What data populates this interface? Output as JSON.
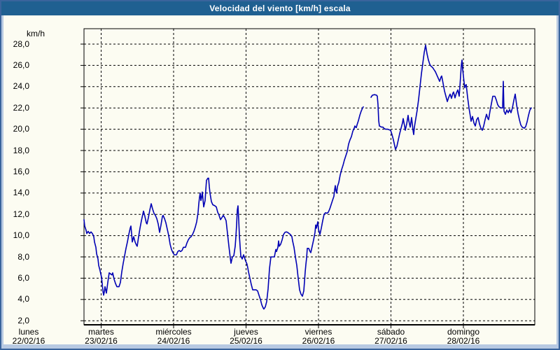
{
  "window": {
    "title": "Velocidad del viento [km/h] escala"
  },
  "colors": {
    "titlebar_bg": "#1f6091",
    "title_text": "#ffffff",
    "frame": "#b7c9e2",
    "frame_border": "#3a649c",
    "content_bg": "#fcfcf2",
    "grid": "#000000",
    "line": "#0000b4",
    "label_text": "#000000"
  },
  "chart_data": {
    "type": "line",
    "title": "Velocidad del viento [km/h] escala",
    "unit_label": "km/h",
    "grid": "dashed",
    "legend": "none",
    "y_axis": {
      "min": 2.0,
      "max": 28.0,
      "step": 2.0,
      "ticks": [
        2,
        4,
        6,
        8,
        10,
        12,
        14,
        16,
        18,
        20,
        22,
        24,
        26,
        28
      ],
      "tick_labels": [
        "2,0",
        "4,0",
        "6,0",
        "8,0",
        "10,0",
        "12,0",
        "14,0",
        "16,0",
        "18,0",
        "20,0",
        "22,0",
        "24,0",
        "26,0",
        "28,0"
      ]
    },
    "x_axis": {
      "days": [
        {
          "name": "lunes",
          "date": "22/02/16"
        },
        {
          "name": "martes",
          "date": "23/02/16"
        },
        {
          "name": "miércoles",
          "date": "24/02/16"
        },
        {
          "name": "jueves",
          "date": "25/02/16"
        },
        {
          "name": "viernes",
          "date": "26/02/16"
        },
        {
          "name": "sábado",
          "date": "27/02/16"
        },
        {
          "name": "domingo",
          "date": "28/02/16"
        }
      ]
    },
    "series_name": "Velocidad del viento",
    "series_color": "#0000b4",
    "segments": [
      [
        [
          118,
          11.5
        ],
        [
          119,
          10.9
        ],
        [
          121,
          10.5
        ],
        [
          122,
          10.2
        ],
        [
          124,
          10.4
        ],
        [
          126,
          10.2
        ],
        [
          128,
          10.35
        ],
        [
          130,
          10.2
        ],
        [
          132,
          9.9
        ],
        [
          133,
          9.4
        ],
        [
          135,
          8.9
        ],
        [
          136,
          8.3
        ],
        [
          138,
          7.8
        ],
        [
          139,
          7.2
        ],
        [
          141,
          6.7
        ],
        [
          143,
          6.1
        ],
        [
          144,
          5.5
        ],
        [
          145,
          4.8
        ],
        [
          146,
          4.4
        ],
        [
          147,
          4.7
        ],
        [
          148,
          5.2
        ],
        [
          149,
          4.9
        ],
        [
          150,
          4.6
        ],
        [
          152,
          5.6
        ],
        [
          154,
          6.5
        ],
        [
          156,
          6.4
        ],
        [
          158,
          6.3
        ],
        [
          159,
          6.5
        ],
        [
          161,
          5.9
        ],
        [
          163,
          5.5
        ],
        [
          165,
          5.2
        ],
        [
          168,
          5.2
        ],
        [
          170,
          5.6
        ],
        [
          172,
          6.6
        ],
        [
          174,
          7.4
        ],
        [
          176,
          8.1
        ],
        [
          178,
          8.8
        ],
        [
          180,
          9.4
        ],
        [
          182,
          10.1
        ],
        [
          184,
          10.7
        ],
        [
          185,
          10.9
        ],
        [
          186,
          10.2
        ],
        [
          187,
          9.4
        ],
        [
          189,
          9.9
        ],
        [
          191,
          9.4
        ],
        [
          193,
          9.1
        ],
        [
          194,
          9.0
        ],
        [
          196,
          9.9
        ],
        [
          198,
          10.7
        ],
        [
          200,
          11.4
        ],
        [
          202,
          12.0
        ],
        [
          203,
          12.3
        ],
        [
          205,
          11.8
        ],
        [
          207,
          11.2
        ],
        [
          208,
          11.1
        ],
        [
          210,
          11.7
        ],
        [
          212,
          12.4
        ],
        [
          214,
          13.0
        ],
        [
          216,
          12.5
        ],
        [
          218,
          12.1
        ],
        [
          220,
          11.9
        ],
        [
          222,
          11.6
        ],
        [
          224,
          11.1
        ],
        [
          226,
          10.3
        ],
        [
          228,
          11.0
        ],
        [
          230,
          11.8
        ],
        [
          231,
          11.9
        ],
        [
          233,
          11.6
        ],
        [
          235,
          11.2
        ],
        [
          237,
          10.6
        ],
        [
          239,
          10.0
        ],
        [
          241,
          9.2
        ],
        [
          243,
          8.7
        ],
        [
          245,
          8.4
        ],
        [
          247,
          8.2
        ],
        [
          250,
          8.2
        ],
        [
          252,
          8.5
        ],
        [
          254,
          8.6
        ],
        [
          256,
          8.5
        ],
        [
          258,
          8.6
        ],
        [
          260,
          8.9
        ],
        [
          263,
          8.9
        ],
        [
          265,
          9.3
        ],
        [
          267,
          9.6
        ],
        [
          269,
          9.8
        ],
        [
          271,
          9.9
        ],
        [
          273,
          10.1
        ],
        [
          275,
          10.4
        ],
        [
          277,
          10.8
        ],
        [
          279,
          11.3
        ],
        [
          281,
          12.2
        ],
        [
          282,
          13.0
        ],
        [
          283,
          13.6
        ],
        [
          284,
          14.0
        ],
        [
          285,
          13.3
        ],
        [
          286,
          13.6
        ],
        [
          287,
          14.1
        ],
        [
          288,
          13.4
        ],
        [
          289,
          12.7
        ],
        [
          291,
          13.3
        ],
        [
          292,
          14.3
        ],
        [
          293,
          15.2
        ],
        [
          295,
          15.4
        ],
        [
          296,
          15.4
        ],
        [
          297,
          14.6
        ],
        [
          298,
          14.0
        ],
        [
          300,
          13.2
        ],
        [
          302,
          12.9
        ],
        [
          305,
          12.8
        ],
        [
          307,
          12.7
        ],
        [
          309,
          12.2
        ],
        [
          311,
          11.9
        ],
        [
          313,
          11.5
        ],
        [
          315,
          11.7
        ],
        [
          317,
          11.9
        ],
        [
          319,
          11.7
        ],
        [
          321,
          11.4
        ],
        [
          323,
          10.2
        ],
        [
          325,
          9.0
        ],
        [
          327,
          7.9
        ],
        [
          328,
          7.4
        ],
        [
          330,
          8.0
        ],
        [
          332,
          8.1
        ],
        [
          334,
          9.0
        ],
        [
          335,
          9.9
        ],
        [
          336,
          11.0
        ],
        [
          337,
          12.4
        ],
        [
          338,
          12.8
        ],
        [
          339,
          11.5
        ],
        [
          340,
          10.0
        ],
        [
          341,
          9.0
        ],
        [
          342,
          8.1
        ],
        [
          344,
          7.8
        ],
        [
          346,
          8.2
        ],
        [
          347,
          8.0
        ],
        [
          349,
          7.6
        ],
        [
          351,
          7.3
        ],
        [
          353,
          6.6
        ],
        [
          355,
          6.0
        ],
        [
          357,
          5.4
        ],
        [
          359,
          4.9
        ],
        [
          362,
          4.9
        ],
        [
          364,
          4.9
        ],
        [
          366,
          4.8
        ],
        [
          368,
          4.4
        ],
        [
          370,
          4.0
        ],
        [
          372,
          3.5
        ],
        [
          374,
          3.2
        ],
        [
          375,
          3.1
        ],
        [
          377,
          3.3
        ],
        [
          379,
          3.8
        ],
        [
          381,
          5.0
        ],
        [
          383,
          6.9
        ],
        [
          385,
          8.0
        ],
        [
          388,
          8.0
        ],
        [
          390,
          8.0
        ],
        [
          392,
          8.7
        ],
        [
          393,
          8.5
        ],
        [
          395,
          8.9
        ],
        [
          396,
          9.5
        ],
        [
          397,
          9.0
        ],
        [
          399,
          9.2
        ],
        [
          401,
          9.6
        ],
        [
          403,
          10.1
        ],
        [
          405,
          10.3
        ],
        [
          407,
          10.35
        ],
        [
          409,
          10.3
        ],
        [
          411,
          10.2
        ],
        [
          413,
          10.1
        ],
        [
          415,
          9.9
        ],
        [
          416,
          9.5
        ],
        [
          418,
          8.9
        ],
        [
          420,
          8.0
        ],
        [
          422,
          7.2
        ],
        [
          424,
          6.0
        ],
        [
          426,
          4.9
        ],
        [
          428,
          4.5
        ],
        [
          430,
          4.3
        ],
        [
          432,
          4.8
        ],
        [
          433,
          5.7
        ],
        [
          434,
          6.6
        ],
        [
          435,
          7.3
        ],
        [
          436,
          7.9
        ],
        [
          437,
          8.8
        ],
        [
          439,
          8.8
        ],
        [
          441,
          8.5
        ],
        [
          442,
          8.4
        ],
        [
          444,
          9.0
        ],
        [
          446,
          9.6
        ],
        [
          448,
          10.3
        ],
        [
          449,
          11.0
        ],
        [
          450,
          10.7
        ],
        [
          452,
          11.3
        ],
        [
          453,
          10.6
        ],
        [
          455,
          10.1
        ],
        [
          457,
          10.7
        ],
        [
          459,
          11.4
        ],
        [
          461,
          12.0
        ],
        [
          463,
          12.15
        ],
        [
          465,
          12.1
        ],
        [
          467,
          12.2
        ],
        [
          469,
          12.5
        ],
        [
          471,
          12.9
        ],
        [
          473,
          13.3
        ],
        [
          475,
          13.7
        ],
        [
          476,
          14.3
        ],
        [
          477,
          14.7
        ],
        [
          478,
          14.2
        ],
        [
          479,
          14.0
        ],
        [
          480,
          14.6
        ],
        [
          482,
          15.0
        ],
        [
          484,
          15.7
        ],
        [
          486,
          16.2
        ],
        [
          488,
          16.6
        ],
        [
          490,
          17.1
        ],
        [
          492,
          17.5
        ],
        [
          494,
          17.9
        ],
        [
          496,
          18.6
        ],
        [
          498,
          19.0
        ],
        [
          500,
          19.3
        ],
        [
          502,
          19.8
        ],
        [
          504,
          20.1
        ],
        [
          505,
          20.3
        ],
        [
          506,
          20.2
        ],
        [
          507,
          20.15
        ],
        [
          508,
          20.4
        ],
        [
          510,
          20.8
        ],
        [
          512,
          21.3
        ],
        [
          514,
          21.7
        ],
        [
          516,
          22.0
        ],
        [
          517,
          22.1
        ]
      ],
      [
        [
          528,
          23.0
        ],
        [
          530,
          23.2
        ],
        [
          533,
          23.25
        ],
        [
          536,
          23.2
        ],
        [
          537,
          23.1
        ],
        [
          538,
          22.3
        ],
        [
          539,
          20.8
        ],
        [
          540,
          20.3
        ],
        [
          543,
          20.2
        ],
        [
          545,
          20.2
        ],
        [
          547,
          20.05
        ],
        [
          549,
          20.0
        ],
        [
          552,
          20.0
        ],
        [
          554,
          19.95
        ],
        [
          556,
          19.9
        ],
        [
          558,
          19.5
        ],
        [
          560,
          19.0
        ],
        [
          562,
          18.4
        ],
        [
          563,
          18.1
        ],
        [
          565,
          18.4
        ],
        [
          567,
          19.0
        ],
        [
          569,
          19.6
        ],
        [
          571,
          20.1
        ],
        [
          573,
          20.6
        ],
        [
          574,
          21.0
        ],
        [
          576,
          20.3
        ],
        [
          577,
          19.9
        ],
        [
          579,
          20.5
        ],
        [
          581,
          21.3
        ],
        [
          582,
          20.8
        ],
        [
          584,
          20.2
        ],
        [
          586,
          21.1
        ],
        [
          588,
          19.9
        ],
        [
          589,
          19.5
        ],
        [
          590,
          20.2
        ],
        [
          592,
          21.0
        ],
        [
          594,
          21.8
        ],
        [
          596,
          22.8
        ],
        [
          598,
          24.0
        ],
        [
          600,
          25.2
        ],
        [
          602,
          26.2
        ],
        [
          604,
          27.2
        ],
        [
          606,
          27.9
        ],
        [
          608,
          27.1
        ],
        [
          610,
          26.5
        ],
        [
          612,
          26.1
        ],
        [
          614,
          25.9
        ],
        [
          616,
          25.8
        ],
        [
          618,
          25.6
        ],
        [
          620,
          25.4
        ],
        [
          622,
          25.1
        ],
        [
          624,
          24.8
        ],
        [
          626,
          24.5
        ],
        [
          628,
          24.9
        ],
        [
          629,
          25.0
        ],
        [
          631,
          24.3
        ],
        [
          633,
          23.6
        ],
        [
          635,
          23.1
        ],
        [
          637,
          22.6
        ],
        [
          639,
          23.0
        ],
        [
          641,
          23.3
        ],
        [
          643,
          22.9
        ],
        [
          645,
          23.4
        ],
        [
          646,
          23.5
        ],
        [
          648,
          22.95
        ],
        [
          650,
          23.4
        ],
        [
          652,
          23.7
        ],
        [
          654,
          23.1
        ],
        [
          655,
          24.0
        ],
        [
          656,
          25.0
        ],
        [
          657,
          26.0
        ],
        [
          658,
          26.5
        ],
        [
          659,
          25.6
        ],
        [
          660,
          25.0
        ],
        [
          661,
          24.4
        ],
        [
          662,
          23.9
        ],
        [
          663,
          24.1
        ],
        [
          664,
          24.2
        ],
        [
          666,
          23.0
        ],
        [
          668,
          22.0
        ],
        [
          670,
          21.2
        ],
        [
          671,
          20.75
        ],
        [
          673,
          21.2
        ],
        [
          675,
          20.6
        ],
        [
          677,
          20.3
        ],
        [
          679,
          20.9
        ],
        [
          681,
          21.1
        ],
        [
          683,
          20.5
        ],
        [
          685,
          20.1
        ],
        [
          687,
          19.9
        ],
        [
          689,
          20.3
        ],
        [
          691,
          20.9
        ],
        [
          693,
          21.4
        ],
        [
          695,
          21.0
        ],
        [
          696,
          20.9
        ],
        [
          698,
          21.7
        ],
        [
          700,
          22.4
        ],
        [
          702,
          23.1
        ],
        [
          705,
          23.1
        ],
        [
          707,
          22.75
        ],
        [
          709,
          22.3
        ],
        [
          711,
          22.1
        ],
        [
          714,
          22.0
        ],
        [
          716,
          22.0
        ],
        [
          717,
          24.5
        ],
        [
          718,
          21.7
        ],
        [
          720,
          21.4
        ],
        [
          722,
          21.8
        ],
        [
          724,
          21.55
        ],
        [
          726,
          21.85
        ],
        [
          728,
          21.55
        ],
        [
          730,
          22.0
        ],
        [
          732,
          22.7
        ],
        [
          734,
          23.3
        ],
        [
          736,
          22.3
        ],
        [
          738,
          21.5
        ],
        [
          740,
          20.9
        ],
        [
          742,
          20.4
        ],
        [
          744,
          20.2
        ],
        [
          747,
          20.1
        ],
        [
          749,
          20.25
        ],
        [
          751,
          20.7
        ],
        [
          753,
          21.3
        ],
        [
          755,
          21.8
        ],
        [
          757,
          22.0
        ]
      ]
    ]
  }
}
